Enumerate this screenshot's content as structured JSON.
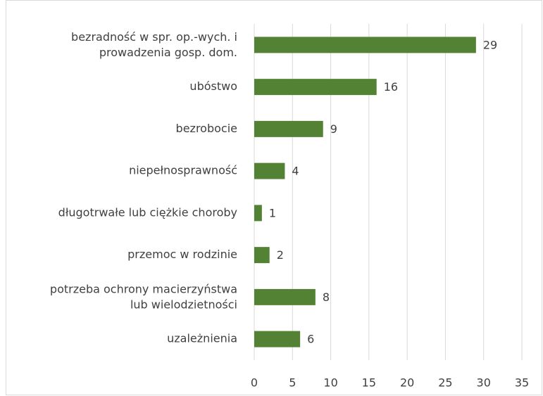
{
  "chart_data": {
    "type": "bar",
    "orientation": "horizontal",
    "categories": [
      "bezradność w spr. op.-wych. i\nprowadzenia gosp. dom.",
      "ubóstwo",
      "bezrobocie",
      "niepełnosprawność",
      "długotrwałe lub ciężkie choroby",
      "przemoc w rodzinie",
      "potrzeba ochrony macierzyństwa\nlub wielodzietności",
      "uzależnienia"
    ],
    "values": [
      29,
      16,
      9,
      4,
      1,
      2,
      8,
      6
    ],
    "color": "#548235",
    "xlim": [
      0,
      35
    ],
    "xticks": [
      0,
      5,
      10,
      15,
      20,
      25,
      30,
      35
    ],
    "grid": true
  }
}
